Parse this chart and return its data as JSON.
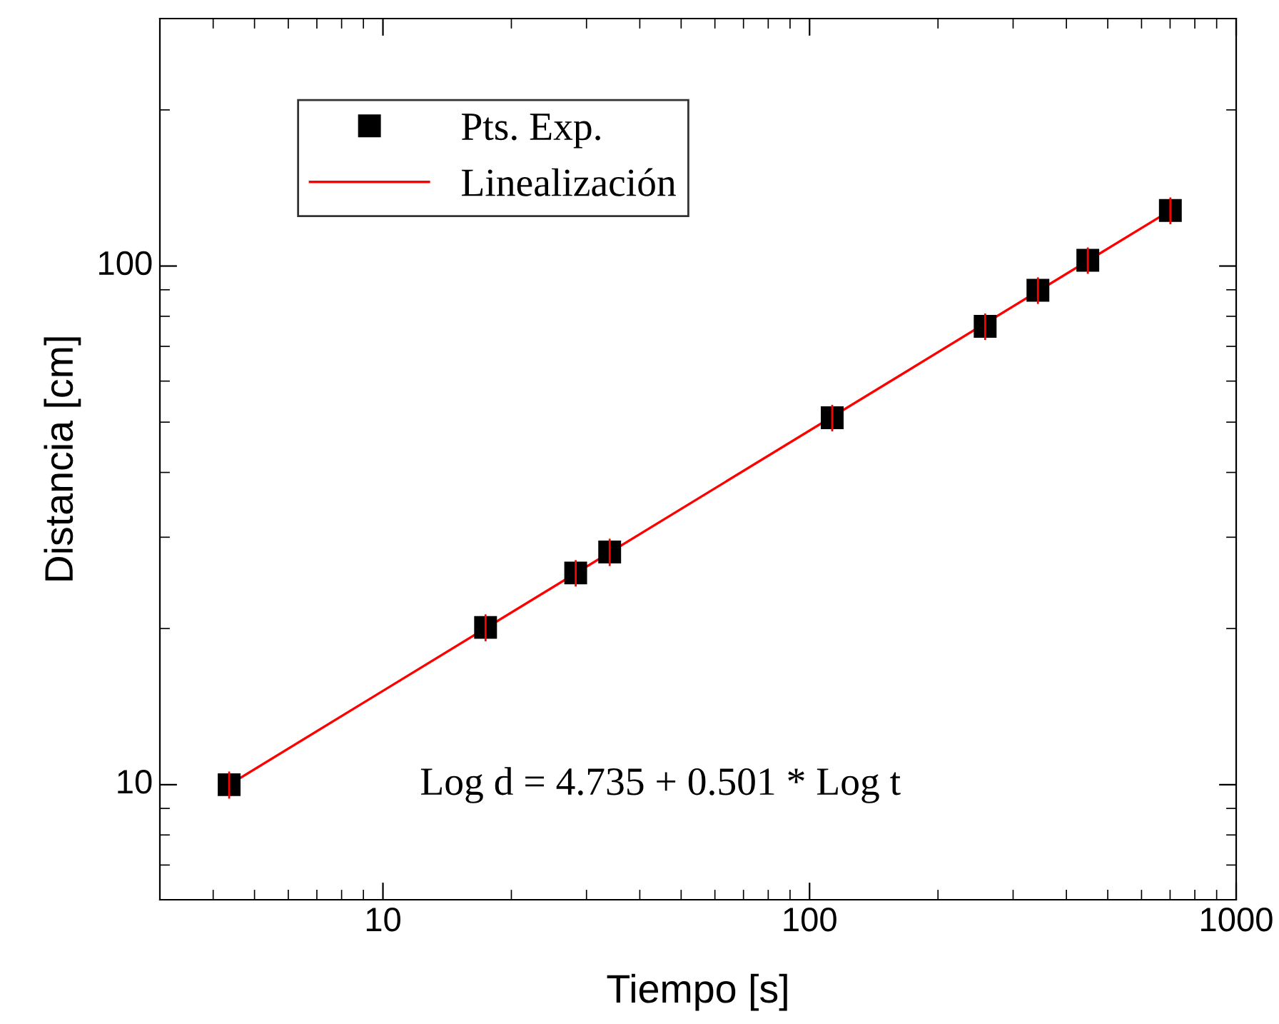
{
  "chart_data": {
    "type": "scatter",
    "xlabel": "Tiempo [s]",
    "ylabel": "Distancia [cm]",
    "log": "xy",
    "xlim": [
      3,
      1000
    ],
    "ylim": [
      6,
      300
    ],
    "xticks": [
      10,
      100,
      1000
    ],
    "yticks": [
      10,
      100
    ],
    "grid": false,
    "legend": "top left",
    "annotations": [
      "Log d = 4.735 + 0.501 * Log t"
    ],
    "series": [
      {
        "name": "Pts. Exp.",
        "color": "#000000",
        "marker": "square",
        "x": [
          4.36,
          17.4,
          28.3,
          34.0,
          113,
          258,
          343,
          449,
          701
        ],
        "values": [
          10.0,
          20.1,
          25.6,
          28.1,
          51,
          76.5,
          89.8,
          102.6,
          128
        ],
        "errors": [
          0.6,
          1.2,
          1.5,
          1.7,
          3,
          4.5,
          5.3,
          6,
          7.6
        ]
      },
      {
        "name": "Linealización",
        "type": "line",
        "color": "#ff0000",
        "marker": "none",
        "line_style": "solid",
        "x": [
          4.36,
          701
        ],
        "values": [
          10.0,
          128
        ]
      }
    ]
  }
}
